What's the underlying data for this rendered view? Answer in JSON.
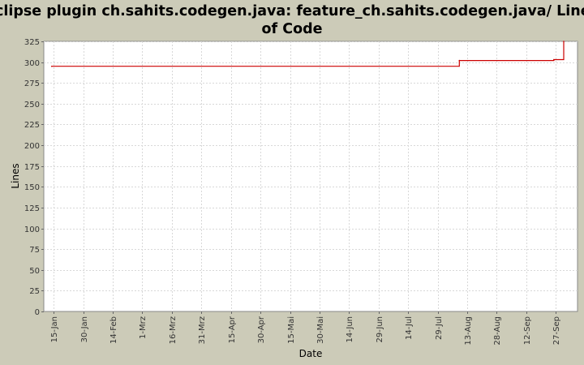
{
  "chart_data": {
    "type": "line",
    "title_lines": [
      "Eclipse plugin ch.sahits.codegen.java: feature_ch.sahits.codegen.java/ Lines",
      "of Code"
    ],
    "xlabel": "Date",
    "ylabel": "Lines",
    "ylim": [
      0,
      325
    ],
    "yticks": [
      0,
      25,
      50,
      75,
      100,
      125,
      150,
      175,
      200,
      225,
      250,
      275,
      300,
      325
    ],
    "xlim": [
      "2010-01-10",
      "2010-10-08"
    ],
    "xticks": [
      {
        "date": "2010-01-15",
        "label": "15-Jan"
      },
      {
        "date": "2010-01-30",
        "label": "30-Jan"
      },
      {
        "date": "2010-02-14",
        "label": "14-Feb"
      },
      {
        "date": "2010-03-01",
        "label": "1-Mrz"
      },
      {
        "date": "2010-03-16",
        "label": "16-Mrz"
      },
      {
        "date": "2010-03-31",
        "label": "31-Mrz"
      },
      {
        "date": "2010-04-15",
        "label": "15-Apr"
      },
      {
        "date": "2010-04-30",
        "label": "30-Apr"
      },
      {
        "date": "2010-05-15",
        "label": "15-Mai"
      },
      {
        "date": "2010-05-30",
        "label": "30-Mai"
      },
      {
        "date": "2010-06-14",
        "label": "14-Jun"
      },
      {
        "date": "2010-06-29",
        "label": "29-Jun"
      },
      {
        "date": "2010-07-14",
        "label": "14-Jul"
      },
      {
        "date": "2010-07-29",
        "label": "29-Jul"
      },
      {
        "date": "2010-08-13",
        "label": "13-Aug"
      },
      {
        "date": "2010-08-28",
        "label": "28-Aug"
      },
      {
        "date": "2010-09-12",
        "label": "12-Sep"
      },
      {
        "date": "2010-09-27",
        "label": "27-Sep"
      }
    ],
    "grid": true,
    "series": [
      {
        "color": "#cc0000",
        "step": true,
        "points": [
          {
            "x": "2010-01-14",
            "y": 295
          },
          {
            "x": "2010-08-09",
            "y": 302
          },
          {
            "x": "2010-09-26",
            "y": 303
          },
          {
            "x": "2010-10-01",
            "y": 325
          }
        ]
      }
    ]
  }
}
